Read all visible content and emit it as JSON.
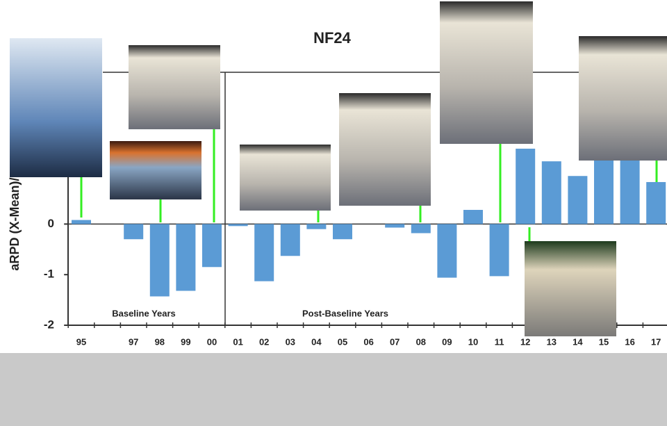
{
  "chart_data": {
    "type": "bar",
    "title": "NF24",
    "y_label": "aRPD (X-Mean)/SD",
    "annotations": [
      "Baseline Years",
      "Post-Baseline Years"
    ],
    "categories": [
      "95",
      null,
      "97",
      "98",
      "99",
      "00",
      "01",
      "02",
      "03",
      "04",
      "05",
      "06",
      "07",
      "08",
      "09",
      "10",
      "11",
      "12",
      "13",
      "14",
      "15",
      "16",
      "17"
    ],
    "values": [
      0.08,
      null,
      -0.3,
      -1.43,
      -1.32,
      -0.85,
      -0.04,
      -1.13,
      -0.63,
      -0.1,
      -0.3,
      null,
      -0.07,
      -0.18,
      -1.06,
      0.28,
      -1.03,
      1.49,
      1.24,
      0.95,
      1.3,
      1.3,
      0.83
    ],
    "color": "#5b9bd5",
    "ylim": [
      -2,
      3
    ],
    "yticks": [
      -2,
      -1,
      0,
      1
    ],
    "grid": false
  }
}
